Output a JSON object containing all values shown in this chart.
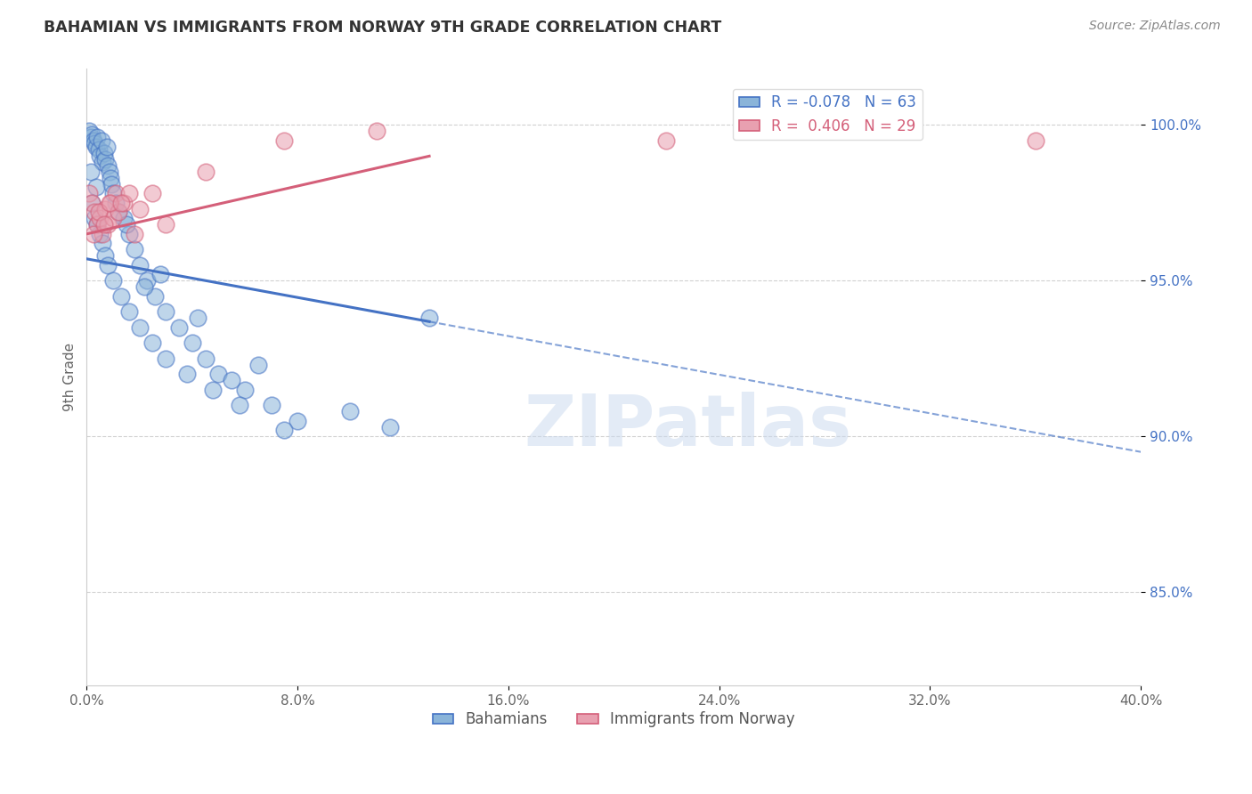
{
  "title": "BAHAMIAN VS IMMIGRANTS FROM NORWAY 9TH GRADE CORRELATION CHART",
  "source": "Source: ZipAtlas.com",
  "ylabel": "9th Grade",
  "watermark": "ZIPatlas",
  "blue_label": "Bahamians",
  "pink_label": "Immigrants from Norway",
  "blue_R": -0.078,
  "blue_N": 63,
  "pink_R": 0.406,
  "pink_N": 29,
  "blue_color": "#8ab4d9",
  "pink_color": "#e8a0b0",
  "blue_line_color": "#4472c4",
  "pink_line_color": "#d45f79",
  "xlim": [
    0.0,
    40.0
  ],
  "ylim": [
    82.0,
    101.8
  ],
  "yticks": [
    85.0,
    90.0,
    95.0,
    100.0
  ],
  "xticks": [
    0.0,
    8.0,
    16.0,
    24.0,
    32.0,
    40.0
  ],
  "blue_line_x0": 0.0,
  "blue_line_y0": 95.7,
  "blue_line_x1": 40.0,
  "blue_line_y1": 89.5,
  "blue_solid_end_x": 13.0,
  "pink_line_x0": 0.0,
  "pink_line_y0": 96.5,
  "pink_line_x1": 13.0,
  "pink_line_y1": 99.0,
  "blue_x": [
    0.1,
    0.15,
    0.2,
    0.25,
    0.3,
    0.35,
    0.4,
    0.45,
    0.5,
    0.55,
    0.6,
    0.65,
    0.7,
    0.75,
    0.8,
    0.85,
    0.9,
    0.95,
    1.0,
    1.1,
    1.2,
    1.4,
    1.6,
    1.8,
    2.0,
    2.3,
    2.6,
    3.0,
    3.5,
    4.0,
    4.5,
    5.0,
    6.0,
    7.0,
    8.0,
    0.2,
    0.3,
    0.4,
    0.5,
    0.6,
    0.7,
    0.8,
    1.0,
    1.3,
    1.6,
    2.0,
    2.5,
    3.0,
    3.8,
    4.8,
    5.8,
    7.5,
    0.15,
    0.35,
    1.5,
    2.8,
    4.2,
    6.5,
    10.0,
    11.5,
    13.0,
    5.5,
    2.2
  ],
  "blue_y": [
    99.8,
    99.6,
    99.7,
    99.5,
    99.4,
    99.3,
    99.6,
    99.2,
    99.0,
    99.5,
    98.8,
    99.1,
    98.9,
    99.3,
    98.7,
    98.5,
    98.3,
    98.1,
    97.8,
    97.5,
    97.2,
    97.0,
    96.5,
    96.0,
    95.5,
    95.0,
    94.5,
    94.0,
    93.5,
    93.0,
    92.5,
    92.0,
    91.5,
    91.0,
    90.5,
    97.5,
    97.0,
    96.8,
    96.5,
    96.2,
    95.8,
    95.5,
    95.0,
    94.5,
    94.0,
    93.5,
    93.0,
    92.5,
    92.0,
    91.5,
    91.0,
    90.2,
    98.5,
    98.0,
    96.8,
    95.2,
    93.8,
    92.3,
    90.8,
    90.3,
    93.8,
    91.8,
    94.8
  ],
  "pink_x": [
    0.1,
    0.2,
    0.3,
    0.4,
    0.5,
    0.6,
    0.7,
    0.8,
    0.9,
    1.0,
    1.1,
    1.2,
    1.4,
    1.6,
    2.0,
    2.5,
    3.0,
    0.25,
    0.45,
    0.65,
    0.85,
    1.3,
    1.8,
    4.5,
    7.5,
    11.0,
    22.0,
    29.5,
    36.0
  ],
  "pink_y": [
    97.8,
    97.5,
    97.2,
    96.8,
    97.0,
    96.5,
    97.3,
    96.8,
    97.5,
    97.0,
    97.8,
    97.2,
    97.5,
    97.8,
    97.3,
    97.8,
    96.8,
    96.5,
    97.2,
    96.8,
    97.5,
    97.5,
    96.5,
    98.5,
    99.5,
    99.8,
    99.5,
    99.8,
    99.5
  ]
}
